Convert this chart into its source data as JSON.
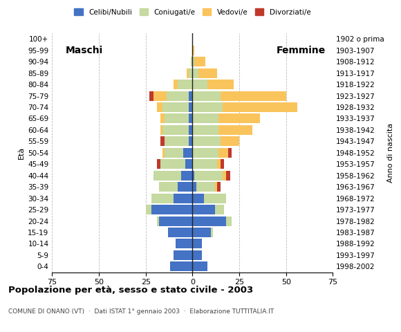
{
  "age_groups": [
    "0-4",
    "5-9",
    "10-14",
    "15-19",
    "20-24",
    "25-29",
    "30-34",
    "35-39",
    "40-44",
    "45-49",
    "50-54",
    "55-59",
    "60-64",
    "65-69",
    "70-74",
    "75-79",
    "80-84",
    "85-89",
    "90-94",
    "95-99",
    "100+"
  ],
  "birth_years": [
    "1998-2002",
    "1993-1997",
    "1988-1992",
    "1983-1987",
    "1978-1982",
    "1973-1977",
    "1968-1972",
    "1963-1967",
    "1958-1962",
    "1953-1957",
    "1948-1952",
    "1943-1947",
    "1938-1942",
    "1933-1937",
    "1928-1932",
    "1923-1927",
    "1918-1922",
    "1913-1917",
    "1908-1912",
    "1903-1907",
    "1902 o prima"
  ],
  "males": {
    "celibe": [
      12,
      10,
      9,
      13,
      18,
      22,
      10,
      8,
      6,
      4,
      5,
      2,
      2,
      2,
      2,
      2,
      0,
      0,
      0,
      0,
      0
    ],
    "coniugato": [
      0,
      0,
      0,
      0,
      1,
      3,
      12,
      10,
      15,
      13,
      10,
      13,
      14,
      13,
      14,
      12,
      8,
      2,
      1,
      0,
      0
    ],
    "vedovo": [
      0,
      0,
      0,
      0,
      0,
      0,
      0,
      0,
      0,
      0,
      1,
      0,
      1,
      2,
      3,
      7,
      2,
      1,
      0,
      0,
      0
    ],
    "divorziato": [
      0,
      0,
      0,
      0,
      0,
      0,
      0,
      0,
      0,
      2,
      0,
      2,
      0,
      0,
      0,
      2,
      0,
      0,
      0,
      0,
      0
    ]
  },
  "females": {
    "nubile": [
      8,
      5,
      5,
      10,
      18,
      12,
      6,
      2,
      1,
      0,
      0,
      0,
      0,
      0,
      0,
      0,
      0,
      0,
      0,
      0,
      0
    ],
    "coniugata": [
      0,
      0,
      0,
      1,
      3,
      5,
      12,
      10,
      15,
      13,
      14,
      15,
      14,
      14,
      16,
      15,
      8,
      3,
      1,
      0,
      0
    ],
    "vedova": [
      0,
      0,
      0,
      0,
      0,
      0,
      0,
      1,
      2,
      2,
      5,
      10,
      18,
      22,
      40,
      35,
      14,
      10,
      6,
      1,
      0
    ],
    "divorziata": [
      0,
      0,
      0,
      0,
      0,
      0,
      0,
      2,
      2,
      2,
      2,
      0,
      0,
      0,
      0,
      0,
      0,
      0,
      0,
      0,
      0
    ]
  },
  "colors": {
    "celibe": "#4472C4",
    "coniugato": "#C5D9A0",
    "vedovo": "#FAC45C",
    "divorziato": "#C0392B"
  },
  "title": "Popolazione per età, sesso e stato civile - 2003",
  "subtitle": "COMUNE DI ONANO (VT)  ·  Dati ISTAT 1° gennaio 2003  ·  Elaborazione TUTTITALIA.IT",
  "label_maschi": "Maschi",
  "label_femmine": "Femmine",
  "ylabel_left": "Età",
  "ylabel_right": "Anno di nascita",
  "xlim": 75,
  "xticks": [
    -75,
    -50,
    -25,
    0,
    25,
    50,
    75
  ],
  "legend_labels": [
    "Celibi/Nubili",
    "Coniugati/e",
    "Vedovi/e",
    "Divorziati/e"
  ],
  "bg_color": "#ffffff",
  "grid_color": "#bbbbbb"
}
